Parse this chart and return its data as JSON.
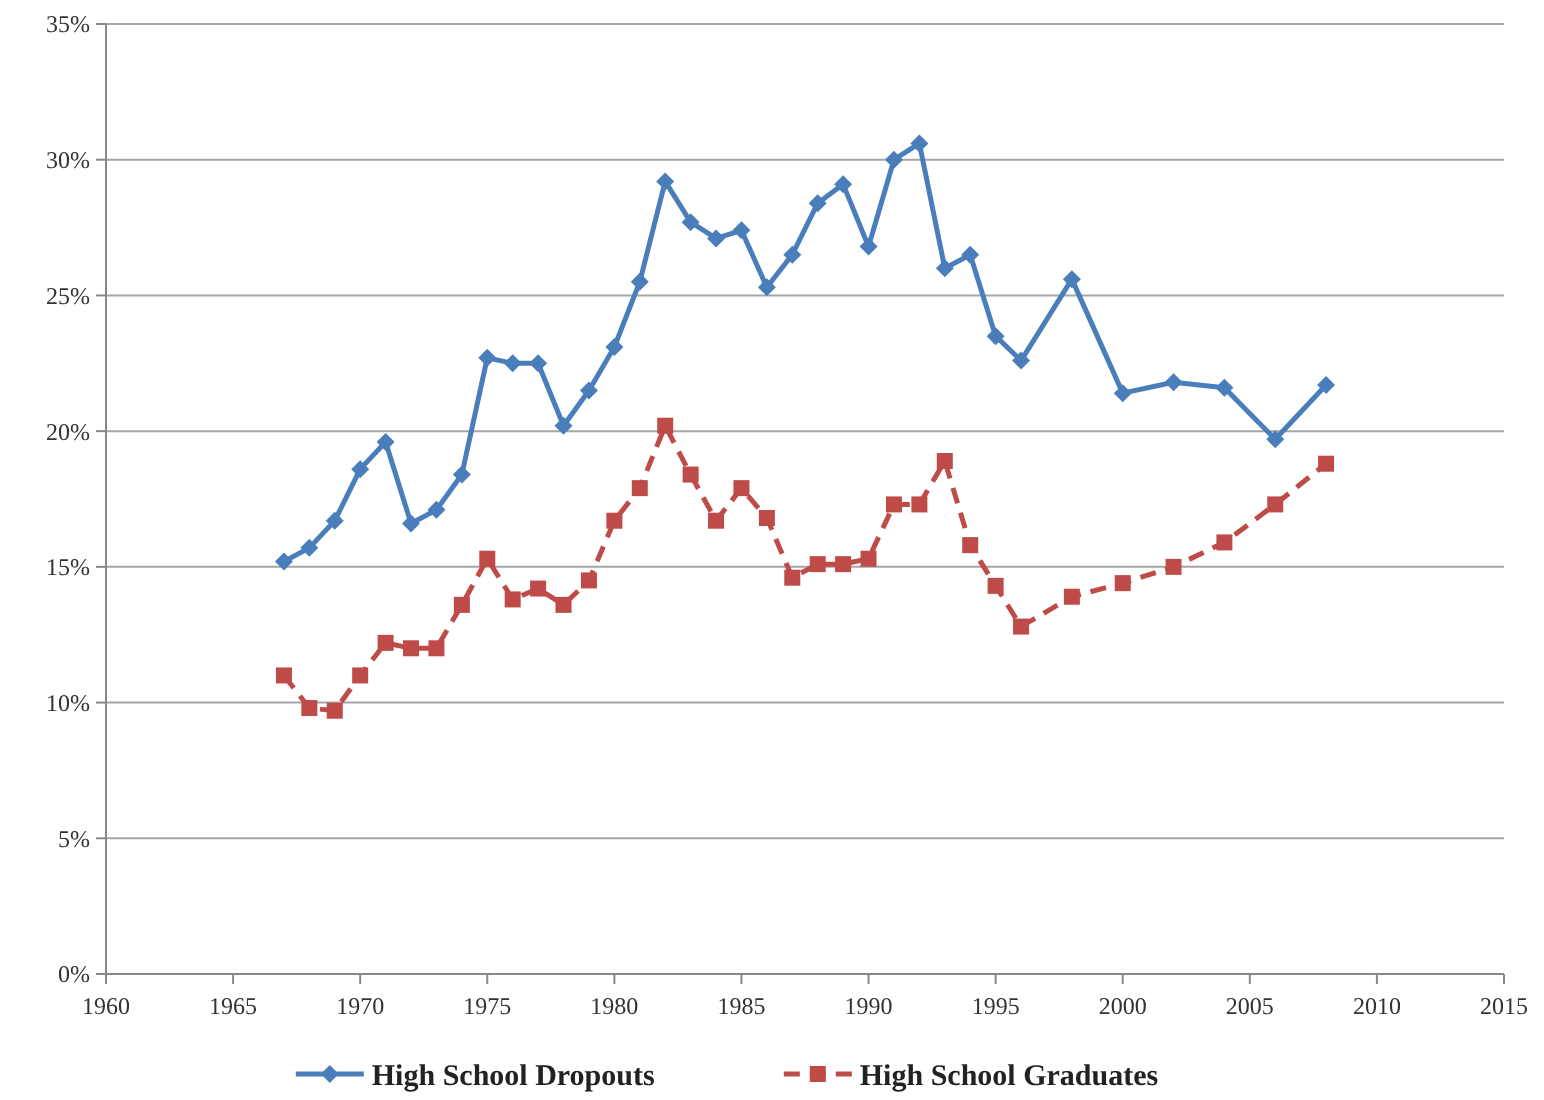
{
  "chart_data": {
    "type": "line",
    "x": [
      1967,
      1968,
      1969,
      1970,
      1971,
      1972,
      1973,
      1974,
      1975,
      1976,
      1977,
      1978,
      1979,
      1980,
      1981,
      1982,
      1983,
      1984,
      1985,
      1986,
      1987,
      1988,
      1989,
      1990,
      1991,
      1992,
      1993,
      1994,
      1995,
      1996,
      1998,
      2000,
      2002,
      2004,
      2006,
      2008
    ],
    "series": [
      {
        "name": "High School Dropouts",
        "color": "#4a7ebb",
        "marker": "diamond",
        "line_style": "solid",
        "values": [
          15.2,
          15.7,
          16.7,
          18.6,
          19.6,
          16.6,
          17.1,
          18.4,
          22.7,
          22.5,
          22.5,
          20.2,
          21.5,
          23.1,
          25.5,
          29.2,
          27.7,
          27.1,
          27.4,
          25.3,
          26.5,
          28.4,
          29.1,
          26.8,
          30.0,
          30.6,
          26.0,
          26.5,
          23.5,
          22.6,
          25.6,
          21.4,
          21.8,
          21.6,
          19.7,
          21.7
        ]
      },
      {
        "name": "High School Graduates",
        "color": "#be4b48",
        "marker": "square",
        "line_style": "dashed",
        "values": [
          11.0,
          9.8,
          9.7,
          11.0,
          12.2,
          12.0,
          12.0,
          13.6,
          15.3,
          13.8,
          14.2,
          13.6,
          14.5,
          16.7,
          17.9,
          20.2,
          18.4,
          16.7,
          17.9,
          16.8,
          14.6,
          15.1,
          15.1,
          15.3,
          17.3,
          17.3,
          18.9,
          15.8,
          14.3,
          12.8,
          13.9,
          14.4,
          15.0,
          15.9,
          17.3,
          18.8
        ]
      }
    ],
    "xlim": [
      1960,
      2015
    ],
    "xticks": [
      1960,
      1965,
      1970,
      1975,
      1980,
      1985,
      1990,
      1995,
      2000,
      2005,
      2010,
      2015
    ],
    "ylim": [
      0,
      35
    ],
    "yticks": [
      {
        "value": 0,
        "label": "0%"
      },
      {
        "value": 5,
        "label": "5%"
      },
      {
        "value": 10,
        "label": "10%"
      },
      {
        "value": 15,
        "label": "15%"
      },
      {
        "value": 20,
        "label": "20%"
      },
      {
        "value": 25,
        "label": "25%"
      },
      {
        "value": 30,
        "label": "30%"
      },
      {
        "value": 35,
        "label": "35%"
      }
    ],
    "grid": "y",
    "legend": "bottom"
  }
}
